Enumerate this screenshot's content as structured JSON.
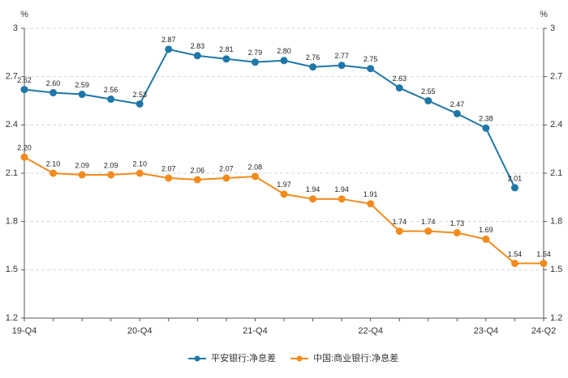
{
  "chart_data": {
    "type": "line",
    "y_unit": "%",
    "y2_unit": "%",
    "categories": [
      "19-Q4",
      null,
      null,
      null,
      "20-Q4",
      null,
      null,
      null,
      "21-Q4",
      null,
      null,
      null,
      "22-Q4",
      null,
      null,
      null,
      "23-Q4",
      null,
      "24-Q2"
    ],
    "series": [
      {
        "name": "平安银行:净息差",
        "color": "#1f77a8",
        "values": [
          2.62,
          2.6,
          2.59,
          2.56,
          2.53,
          2.87,
          2.83,
          2.81,
          2.79,
          2.8,
          2.76,
          2.77,
          2.75,
          2.63,
          2.55,
          2.47,
          2.38,
          2.01,
          null
        ],
        "value_labels": [
          "2.62",
          "2.60",
          "2.59",
          "2.56",
          "2.53",
          "2.87",
          "2.83",
          "2.81",
          "2.79",
          "2.80",
          "2.76",
          "2.77",
          "2.75",
          "2.63",
          "2.55",
          "2.47",
          "2.38",
          "2.01",
          null
        ]
      },
      {
        "name": "中国:商业银行:净息差",
        "color": "#f28a1c",
        "values": [
          2.2,
          2.1,
          2.09,
          2.09,
          2.1,
          2.07,
          2.06,
          2.07,
          2.08,
          1.97,
          1.94,
          1.94,
          1.91,
          1.74,
          1.74,
          1.73,
          1.69,
          1.54,
          1.54
        ],
        "value_labels": [
          "2.20",
          "2.10",
          "2.09",
          "2.09",
          "2.10",
          "2.07",
          "2.06",
          "2.07",
          "2.08",
          "1.97",
          "1.94",
          "1.94",
          "1.91",
          "1.74",
          "1.74",
          "1.73",
          "1.69",
          "1.54",
          "1.54"
        ]
      }
    ],
    "ylim": [
      1.2,
      3
    ],
    "yticks": [
      1.2,
      1.5,
      1.8,
      2.1,
      2.4,
      2.7,
      3
    ],
    "y2lim": [
      1.2,
      3
    ],
    "y2ticks": [
      1.2,
      1.5,
      1.8,
      2.1,
      2.4,
      2.7,
      3
    ],
    "grid": true,
    "legend": "bottom"
  }
}
